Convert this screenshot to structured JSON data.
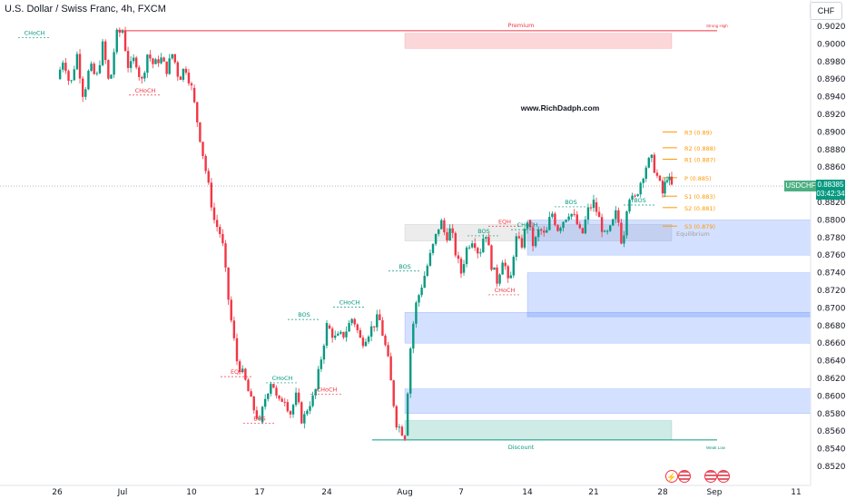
{
  "window": {
    "title": "U.S. Dollar / Swiss Franc, 4h, FXCM"
  },
  "price_scale": {
    "currency": "CHF"
  },
  "symbol_badge": "USDCHF",
  "last_price": {
    "value": "0.88385",
    "countdown": "03:42:34"
  },
  "watermark": "www.RichDadph.com",
  "colors": {
    "up": "#089981",
    "down": "#f23645",
    "ote": "#ff9800",
    "premium": "#f23645",
    "discount": "#089981"
  },
  "events": [
    "lightning-icon",
    "us-flag-icon",
    "us-flag-icon",
    "us-flag-icon"
  ],
  "chart_data": {
    "type": "candlestick",
    "ylim": [
      0.8512,
      0.9025
    ],
    "y_ticks": [
      "0.90200",
      "0.90000",
      "0.89800",
      "0.89600",
      "0.89400",
      "0.89200",
      "0.89000",
      "0.88800",
      "0.88600",
      "0.88400",
      "0.88200",
      "0.88000",
      "0.87800",
      "0.87600",
      "0.87400",
      "0.87200",
      "0.87000",
      "0.86800",
      "0.86600",
      "0.86400",
      "0.86200",
      "0.86000",
      "0.85800",
      "0.85600",
      "0.85400",
      "0.85200"
    ],
    "x_ticks": [
      "26",
      "Jul",
      "10",
      "17",
      "24",
      "Aug",
      "7",
      "14",
      "21",
      "28",
      "Sep",
      "11"
    ],
    "last_price": 0.88385,
    "segments": [
      {
        "from": "26",
        "to": "Jul",
        "path": [
          0.896,
          0.8985,
          0.895,
          0.899,
          0.894,
          0.8975,
          0.896,
          0.9,
          0.895,
          0.901,
          0.9015
        ]
      },
      {
        "from": "Jul",
        "to": "10",
        "path": [
          0.9015,
          0.897,
          0.8985,
          0.8955,
          0.899,
          0.8975,
          0.8985,
          0.897,
          0.899,
          0.896,
          0.8975,
          0.895
        ]
      },
      {
        "from": "10",
        "to": "17",
        "path": [
          0.895,
          0.89,
          0.885,
          0.88,
          0.878,
          0.87,
          0.864,
          0.862,
          0.859,
          0.857
        ]
      },
      {
        "from": "17",
        "to": "24",
        "path": [
          0.857,
          0.86,
          0.862,
          0.859,
          0.86,
          0.858,
          0.86,
          0.857,
          0.859,
          0.86,
          0.864,
          0.868
        ]
      },
      {
        "from": "24",
        "to": "Aug",
        "path": [
          0.868,
          0.8665,
          0.867,
          0.869,
          0.866,
          0.8675,
          0.869,
          0.8645,
          0.857,
          0.8555
        ]
      },
      {
        "from": "Aug",
        "to": "7",
        "path": [
          0.8555,
          0.865,
          0.87,
          0.872,
          0.874,
          0.876,
          0.878,
          0.88,
          0.878,
          0.879,
          0.876,
          0.874
        ]
      },
      {
        "from": "7",
        "to": "14",
        "path": [
          0.874,
          0.877,
          0.878,
          0.876,
          0.879,
          0.875,
          0.873,
          0.876,
          0.872,
          0.878,
          0.877,
          0.88
        ]
      },
      {
        "from": "14",
        "to": "21",
        "path": [
          0.88,
          0.877,
          0.879,
          0.878,
          0.881,
          0.879,
          0.88,
          0.881,
          0.88,
          0.878,
          0.881,
          0.882
        ]
      },
      {
        "from": "21",
        "to": "28",
        "path": [
          0.882,
          0.88,
          0.878,
          0.879,
          0.881,
          0.877,
          0.883,
          0.882,
          0.884,
          0.886,
          0.887,
          0.885,
          0.883
        ]
      },
      {
        "from": "28",
        "to": "28.5",
        "path": [
          0.883,
          0.885,
          0.8838
        ]
      }
    ],
    "zones": [
      {
        "label": "Premium",
        "from": "Aug",
        "to": "28.5",
        "y": [
          0.8995,
          0.9012
        ],
        "color": "#f23645"
      },
      {
        "label": "",
        "from": "Aug",
        "to": "28.5",
        "y": [
          0.8776,
          0.8795
        ],
        "color": "#9e9e9e"
      },
      {
        "label": "",
        "from": "14",
        "to": "Sep+",
        "y": [
          0.876,
          0.88
        ],
        "color": "#2962ff"
      },
      {
        "label": "",
        "from": "14",
        "to": "Sep+",
        "y": [
          0.869,
          0.874
        ],
        "color": "#2962ff"
      },
      {
        "label": "",
        "from": "Aug",
        "to": "Sep+",
        "y": [
          0.866,
          0.8695
        ],
        "color": "#2962ff"
      },
      {
        "label": "",
        "from": "Aug",
        "to": "Sep+",
        "y": [
          0.858,
          0.8608
        ],
        "color": "#2962ff"
      },
      {
        "label": "Discount",
        "from": "Aug",
        "to": "28.5",
        "y": [
          0.855,
          0.8572
        ],
        "color": "#089981"
      }
    ],
    "levels": [
      {
        "label": "Strong High",
        "y": 0.9015,
        "color": "#f23645"
      },
      {
        "label": "Weak Low",
        "y": 0.855,
        "color": "#089981"
      }
    ],
    "pivots": [
      {
        "label": "R3 (0.89)",
        "y": 0.89
      },
      {
        "label": "R2 (0.888)",
        "y": 0.8882
      },
      {
        "label": "R1 (0.887)",
        "y": 0.8869
      },
      {
        "label": "P (0.885)",
        "y": 0.8848
      },
      {
        "label": "S1 (0.883)",
        "y": 0.8827
      },
      {
        "label": "S2 (0.881)",
        "y": 0.8814
      },
      {
        "label": "S3 (0.879)",
        "y": 0.8793
      }
    ],
    "equilibrium_label": "Equilibrium",
    "structure_labels": [
      {
        "text": "CHoCH",
        "x": "26-",
        "y": 0.901,
        "color": "#089981"
      },
      {
        "text": "CHoCH",
        "x": "Jul+",
        "y": 0.8945,
        "color": "#f23645"
      },
      {
        "text": "EQH",
        "x": "17-",
        "y": 0.8625,
        "color": "#f23645"
      },
      {
        "text": "CHoCH",
        "x": "17+",
        "y": 0.8618,
        "color": "#089981"
      },
      {
        "text": "BOS",
        "x": "17",
        "y": 0.8572,
        "color": "#f23645"
      },
      {
        "text": "BOS",
        "x": "24-",
        "y": 0.869,
        "color": "#089981"
      },
      {
        "text": "CHoCH",
        "x": "24",
        "y": 0.8605,
        "color": "#f23645"
      },
      {
        "text": "CHoCH",
        "x": "24+",
        "y": 0.8704,
        "color": "#089981"
      },
      {
        "text": "BOS",
        "x": "Aug",
        "y": 0.8745,
        "color": "#089981"
      },
      {
        "text": "BOS",
        "x": "7+",
        "y": 0.8785,
        "color": "#089981"
      },
      {
        "text": "EQH",
        "x": "14-",
        "y": 0.8796,
        "color": "#f23645"
      },
      {
        "text": "CHoCH",
        "x": "14",
        "y": 0.8792,
        "color": "#089981"
      },
      {
        "text": "CHoCH",
        "x": "14-",
        "y": 0.8718,
        "color": "#f23645"
      },
      {
        "text": "BOS",
        "x": "21-",
        "y": 0.8818,
        "color": "#089981"
      },
      {
        "text": "BOS",
        "x": "28-",
        "y": 0.882,
        "color": "#089981"
      }
    ]
  }
}
